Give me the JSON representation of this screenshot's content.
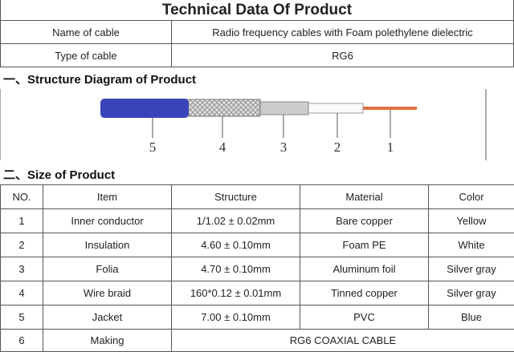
{
  "header": {
    "title": "Technical Data Of Product"
  },
  "info": {
    "rows": [
      [
        "Name of cable",
        "Radio frequency cables with Foam polethylene dielectric"
      ],
      [
        "Type of cable",
        "RG6"
      ]
    ]
  },
  "sections": [
    "一、Structure Diagram of Product",
    "二、Size of Product"
  ],
  "diagram": {
    "labels": [
      "5",
      "4",
      "3",
      "2",
      "1"
    ]
  },
  "table": {
    "header": [
      "NO.",
      "Item",
      "Structure",
      "Material",
      "Color"
    ],
    "rows": [
      [
        "1",
        "Inner conductor",
        "1/1.02 ± 0.02mm",
        "Bare copper",
        "Yellow"
      ],
      [
        "2",
        "Insulation",
        "4.60 ± 0.10mm",
        "Foam PE",
        "White"
      ],
      [
        "3",
        "Folia",
        "4.70 ± 0.10mm",
        "Aluminum foil",
        "Silver gray"
      ],
      [
        "4",
        "Wire braid",
        "160*0.12 ± 0.01mm",
        "Tinned copper",
        "Silver gray"
      ],
      [
        "5",
        "Jacket",
        "7.00 ± 0.10mm",
        "PVC",
        "Blue"
      ],
      [
        "6",
        "Making",
        "RG6 COAXIAL CABLE"
      ]
    ]
  }
}
